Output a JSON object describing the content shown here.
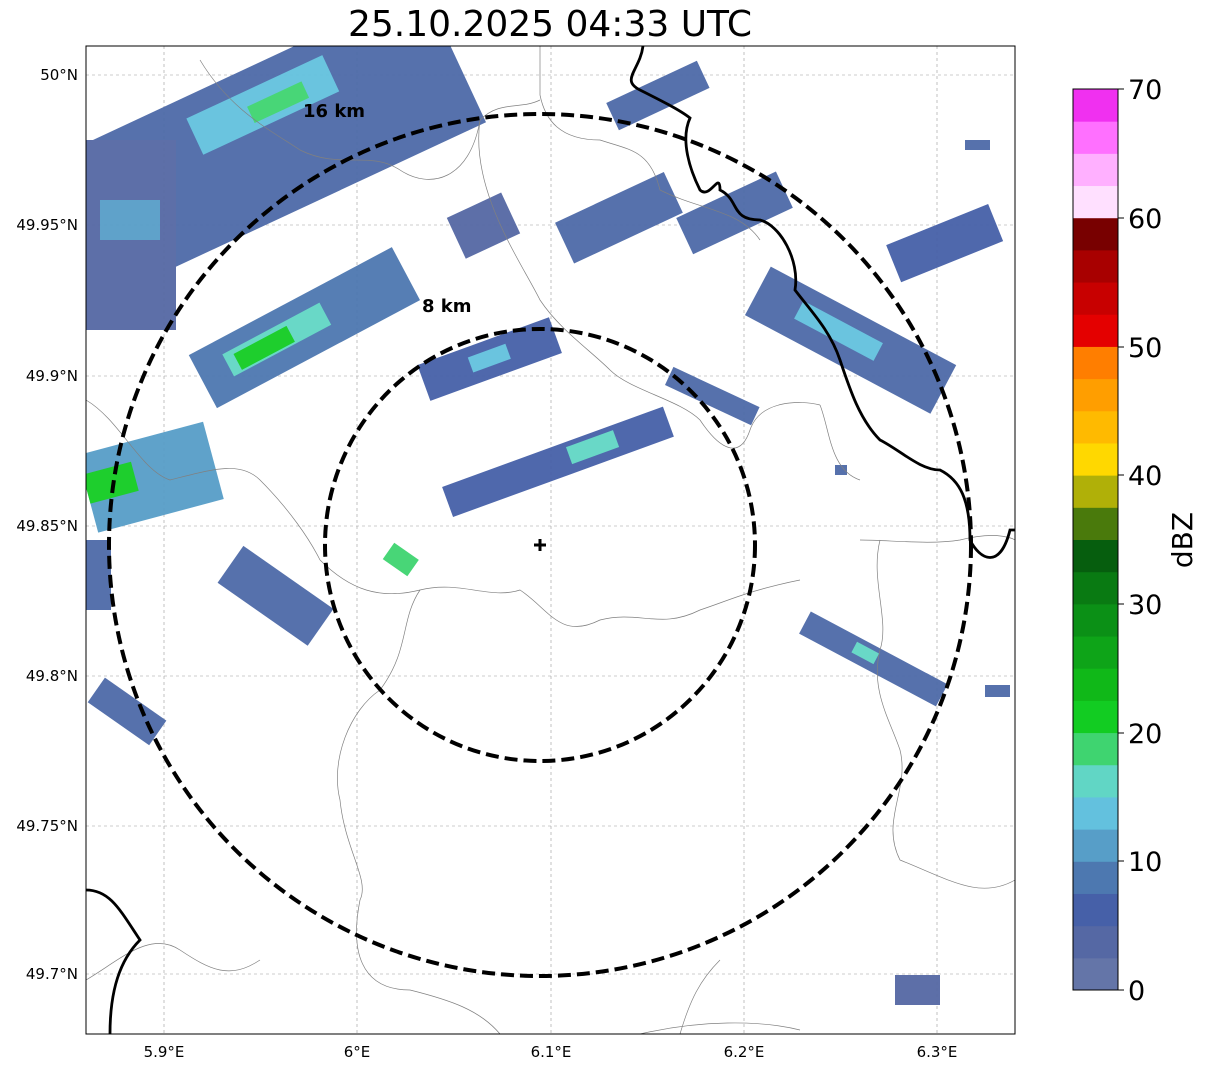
{
  "title": "25.10.2025 04:33 UTC",
  "map": {
    "x_ticks": [
      "5.9°E",
      "6°E",
      "6.1°E",
      "6.2°E",
      "6.3°E"
    ],
    "y_ticks": [
      "50°N",
      "49.95°N",
      "49.9°N",
      "49.85°N",
      "49.8°N",
      "49.75°N",
      "49.7°N"
    ],
    "lon_range": [
      5.86,
      6.34
    ],
    "lat_range": [
      49.68,
      50.01
    ],
    "radar_site": {
      "lon": 6.096,
      "lat": 49.843
    },
    "range_rings": [
      {
        "label": "8 km",
        "radius_km": 8
      },
      {
        "label": "16 km",
        "radius_km": 16
      }
    ]
  },
  "colorbar": {
    "label": "dBZ",
    "ticks": [
      "0",
      "10",
      "20",
      "30",
      "40",
      "50",
      "60",
      "70"
    ],
    "min": 0,
    "max": 70,
    "colors": [
      "#6475a8",
      "#5568a4",
      "#4660a8",
      "#4d78b0",
      "#579ec8",
      "#63c1de",
      "#61d6c5",
      "#3fd470",
      "#12cc22",
      "#10b818",
      "#0ea418",
      "#0b9016",
      "#097a12",
      "#065e0e",
      "#4a7a0c",
      "#b0b008",
      "#ffd800",
      "#ffba00",
      "#ff9e00",
      "#ff7e00",
      "#e40000",
      "#c80000",
      "#a80000",
      "#780000",
      "#ffe0ff",
      "#ffb0ff",
      "#ff70ff",
      "#f030f0"
    ]
  }
}
